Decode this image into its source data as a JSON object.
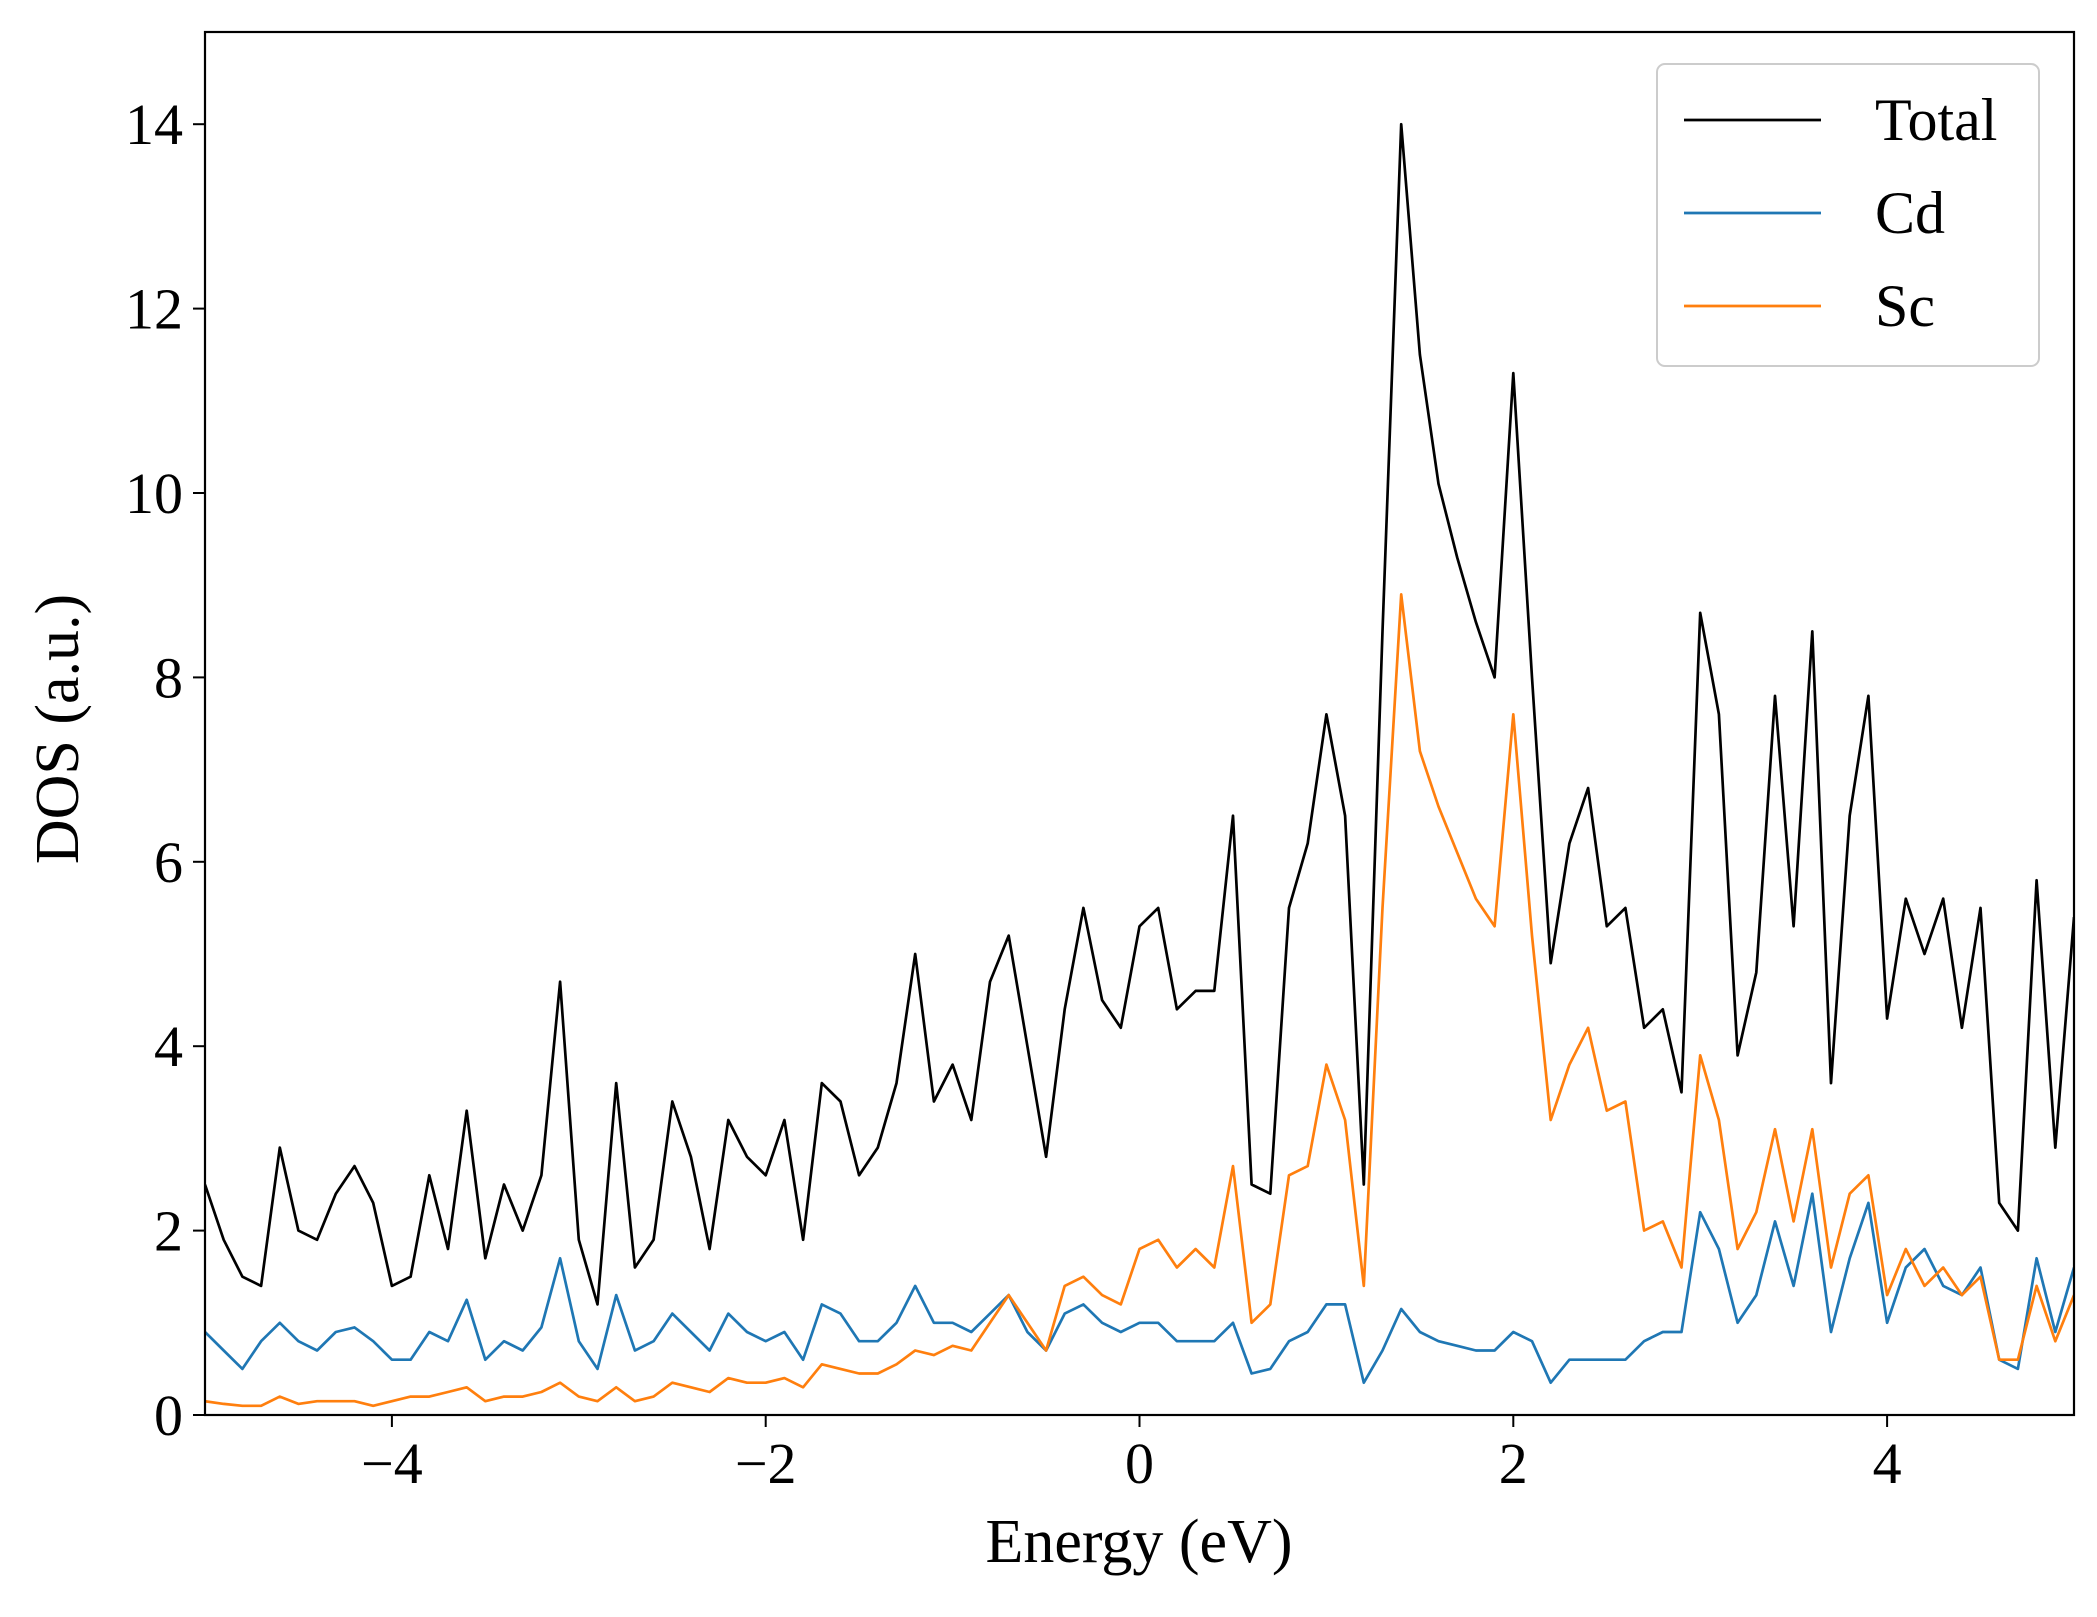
{
  "chart_data": {
    "type": "line",
    "x_label": "Energy (eV)",
    "y_label": "DOS (a.u.)",
    "xlim": [
      -5,
      5
    ],
    "ylim": [
      0,
      15
    ],
    "xticks": [
      {
        "value": -4,
        "label": "−4"
      },
      {
        "value": -2,
        "label": "−2"
      },
      0,
      2,
      4
    ],
    "yticks": [
      0,
      2,
      4,
      6,
      8,
      10,
      12,
      14
    ],
    "legend": "upper right",
    "x": [
      -5.0,
      -4.9,
      -4.8,
      -4.7,
      -4.6,
      -4.5,
      -4.4,
      -4.3,
      -4.2,
      -4.1,
      -4.0,
      -3.9,
      -3.8,
      -3.7,
      -3.6,
      -3.5,
      -3.4,
      -3.3,
      -3.2,
      -3.1,
      -3.0,
      -2.9,
      -2.8,
      -2.7,
      -2.6,
      -2.5,
      -2.4,
      -2.3,
      -2.2,
      -2.1,
      -2.0,
      -1.9,
      -1.8,
      -1.7,
      -1.6,
      -1.5,
      -1.4,
      -1.3,
      -1.2,
      -1.1,
      -1.0,
      -0.9,
      -0.8,
      -0.7,
      -0.6,
      -0.5,
      -0.4,
      -0.3,
      -0.2,
      -0.1,
      0.0,
      0.1,
      0.2,
      0.3,
      0.4,
      0.5,
      0.6,
      0.7,
      0.8,
      0.9,
      1.0,
      1.1,
      1.2,
      1.3,
      1.4,
      1.5,
      1.6,
      1.7,
      1.8,
      1.9,
      2.0,
      2.1,
      2.2,
      2.3,
      2.4,
      2.5,
      2.6,
      2.7,
      2.8,
      2.9,
      3.0,
      3.1,
      3.2,
      3.3,
      3.4,
      3.5,
      3.6,
      3.7,
      3.8,
      3.9,
      4.0,
      4.1,
      4.2,
      4.3,
      4.4,
      4.5,
      4.6,
      4.7,
      4.8,
      4.9,
      5.0
    ],
    "series": [
      {
        "name": "Total",
        "color": "#000000",
        "values": [
          2.5,
          1.9,
          1.5,
          1.4,
          2.9,
          2.0,
          1.9,
          2.4,
          2.7,
          2.3,
          1.4,
          1.5,
          2.6,
          1.8,
          3.3,
          1.7,
          2.5,
          2.0,
          2.6,
          4.7,
          1.9,
          1.2,
          3.6,
          1.6,
          1.9,
          3.4,
          2.8,
          1.8,
          3.2,
          2.8,
          2.6,
          3.2,
          1.9,
          3.6,
          3.4,
          2.6,
          2.9,
          3.6,
          5.0,
          3.4,
          3.8,
          3.2,
          4.7,
          5.2,
          4.0,
          2.8,
          4.4,
          5.5,
          4.5,
          4.2,
          5.3,
          5.5,
          4.4,
          4.6,
          4.6,
          6.5,
          2.5,
          2.4,
          5.5,
          6.2,
          7.6,
          6.5,
          2.5,
          8.5,
          14.0,
          11.5,
          10.1,
          9.3,
          8.6,
          8.0,
          11.3,
          8.0,
          4.9,
          6.2,
          6.8,
          5.3,
          5.5,
          4.2,
          4.4,
          3.5,
          8.7,
          7.6,
          3.9,
          4.8,
          7.8,
          5.3,
          8.5,
          3.6,
          6.5,
          7.8,
          4.3,
          5.6,
          5.0,
          5.6,
          4.2,
          5.5,
          2.3,
          2.0,
          5.8,
          2.9,
          5.4
        ]
      },
      {
        "name": "Cd",
        "color": "#1f77b4",
        "values": [
          0.9,
          0.7,
          0.5,
          0.8,
          1.0,
          0.8,
          0.7,
          0.9,
          0.95,
          0.8,
          0.6,
          0.6,
          0.9,
          0.8,
          1.25,
          0.6,
          0.8,
          0.7,
          0.95,
          1.7,
          0.8,
          0.5,
          1.3,
          0.7,
          0.8,
          1.1,
          0.9,
          0.7,
          1.1,
          0.9,
          0.8,
          0.9,
          0.6,
          1.2,
          1.1,
          0.8,
          0.8,
          1.0,
          1.4,
          1.0,
          1.0,
          0.9,
          1.1,
          1.3,
          0.9,
          0.7,
          1.1,
          1.2,
          1.0,
          0.9,
          1.0,
          1.0,
          0.8,
          0.8,
          0.8,
          1.0,
          0.45,
          0.5,
          0.8,
          0.9,
          1.2,
          1.2,
          0.35,
          0.7,
          1.15,
          0.9,
          0.8,
          0.75,
          0.7,
          0.7,
          0.9,
          0.8,
          0.35,
          0.6,
          0.6,
          0.6,
          0.6,
          0.8,
          0.9,
          0.9,
          2.2,
          1.8,
          1.0,
          1.3,
          2.1,
          1.4,
          2.4,
          0.9,
          1.7,
          2.3,
          1.0,
          1.6,
          1.8,
          1.4,
          1.3,
          1.6,
          0.6,
          0.5,
          1.7,
          0.9,
          1.6
        ]
      },
      {
        "name": "Sc",
        "color": "#ff7f0e",
        "values": [
          0.15,
          0.12,
          0.1,
          0.1,
          0.2,
          0.12,
          0.15,
          0.15,
          0.15,
          0.1,
          0.15,
          0.2,
          0.2,
          0.25,
          0.3,
          0.15,
          0.2,
          0.2,
          0.25,
          0.35,
          0.2,
          0.15,
          0.3,
          0.15,
          0.2,
          0.35,
          0.3,
          0.25,
          0.4,
          0.35,
          0.35,
          0.4,
          0.3,
          0.55,
          0.5,
          0.45,
          0.45,
          0.55,
          0.7,
          0.65,
          0.75,
          0.7,
          1.0,
          1.3,
          1.0,
          0.7,
          1.4,
          1.5,
          1.3,
          1.2,
          1.8,
          1.9,
          1.6,
          1.8,
          1.6,
          2.7,
          1.0,
          1.2,
          2.6,
          2.7,
          3.8,
          3.2,
          1.4,
          5.5,
          8.9,
          7.2,
          6.6,
          6.1,
          5.6,
          5.3,
          7.6,
          5.2,
          3.2,
          3.8,
          4.2,
          3.3,
          3.4,
          2.0,
          2.1,
          1.6,
          3.9,
          3.2,
          1.8,
          2.2,
          3.1,
          2.1,
          3.1,
          1.6,
          2.4,
          2.6,
          1.3,
          1.8,
          1.4,
          1.6,
          1.3,
          1.5,
          0.6,
          0.6,
          1.4,
          0.8,
          1.3
        ]
      }
    ]
  }
}
